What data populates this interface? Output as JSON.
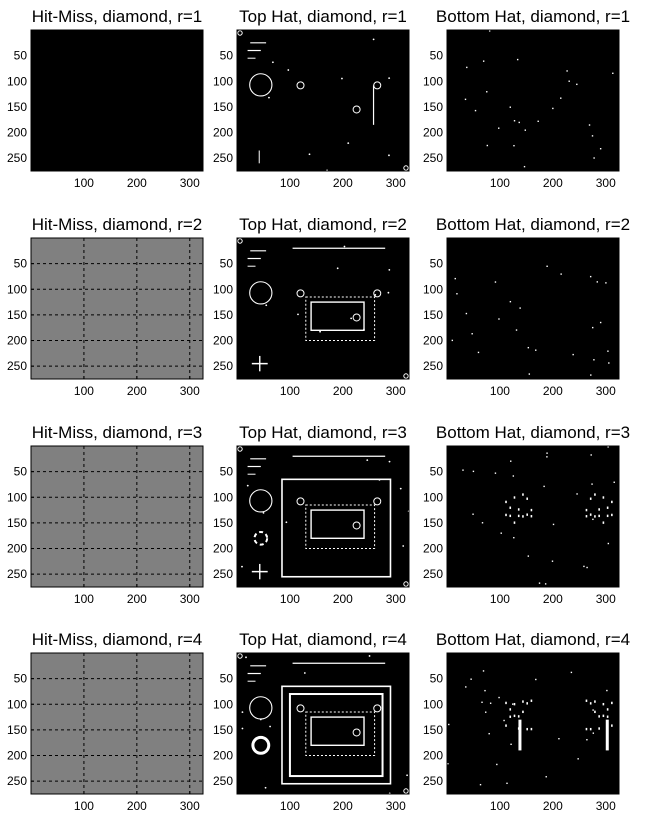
{
  "figure": {
    "type": "image-grid",
    "grid": {
      "rows": 4,
      "cols": 3
    },
    "x_ticks": [
      100,
      200,
      300
    ],
    "y_ticks": [
      50,
      100,
      150,
      200,
      250
    ],
    "xlim": [
      0,
      325
    ],
    "ylim": [
      0,
      275
    ]
  },
  "chart_data": [
    {
      "type": "heatmap",
      "title": "Hit-Miss, diamond, r=1",
      "fill": "#000000",
      "grid": false,
      "overlay": []
    },
    {
      "type": "heatmap",
      "title": "Top Hat, diamond, r=1",
      "fill": "#000000",
      "grid": false,
      "overlay": [
        "dots",
        "circle-big",
        "circles",
        "vline",
        "tiny-lines",
        "plus-small"
      ]
    },
    {
      "type": "heatmap",
      "title": "Bottom Hat, diamond, r=1",
      "fill": "#000000",
      "grid": false,
      "overlay": [
        "speckle"
      ]
    },
    {
      "type": "heatmap",
      "title": "Hit-Miss, diamond, r=2",
      "fill": "#808080",
      "grid": true,
      "overlay": []
    },
    {
      "type": "heatmap",
      "title": "Top Hat, diamond, r=2",
      "fill": "#000000",
      "grid": false,
      "overlay": [
        "dots",
        "circle-big",
        "circles",
        "topline",
        "inner-rect",
        "plus",
        "tiny-lines"
      ]
    },
    {
      "type": "heatmap",
      "title": "Bottom Hat, diamond, r=2",
      "fill": "#000000",
      "grid": false,
      "overlay": [
        "speckle"
      ]
    },
    {
      "type": "heatmap",
      "title": "Hit-Miss, diamond, r=3",
      "fill": "#808080",
      "grid": true,
      "overlay": []
    },
    {
      "type": "heatmap",
      "title": "Top Hat, diamond, r=3",
      "fill": "#000000",
      "grid": false,
      "overlay": [
        "dots",
        "circle-big",
        "circles",
        "topline",
        "inner-rect",
        "outer-rect",
        "plus",
        "tiny-lines",
        "ring-small"
      ]
    },
    {
      "type": "heatmap",
      "title": "Bottom Hat, diamond, r=3",
      "fill": "#000000",
      "grid": false,
      "overlay": [
        "speckle",
        "v-marks"
      ]
    },
    {
      "type": "heatmap",
      "title": "Hit-Miss, diamond, r=4",
      "fill": "#808080",
      "grid": true,
      "overlay": []
    },
    {
      "type": "heatmap",
      "title": "Top Hat, diamond, r=4",
      "fill": "#000000",
      "grid": false,
      "overlay": [
        "dots",
        "circle-big",
        "circles",
        "topline",
        "inner-rect",
        "outer-rect",
        "outer-rect-2",
        "ring-thick",
        "tiny-lines"
      ]
    },
    {
      "type": "heatmap",
      "title": "Bottom Hat, diamond, r=4",
      "fill": "#000000",
      "grid": false,
      "overlay": [
        "speckle",
        "v-marks",
        "v-bars"
      ]
    }
  ]
}
